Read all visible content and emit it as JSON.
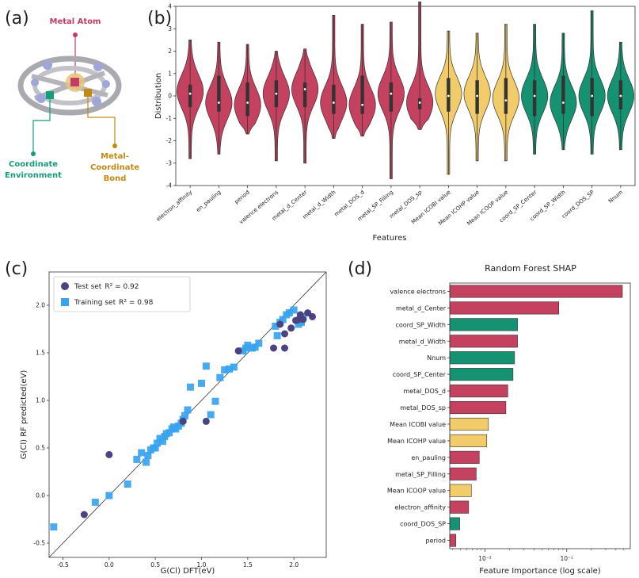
{
  "panel_labels": [
    "(a)",
    "(b)",
    "(c)",
    "(d)"
  ],
  "molecule": {
    "metal_atom_label": "Metal Atom",
    "coord_env_label_1": "Coordinate",
    "coord_env_label_2": "Environment",
    "bond_label_1": "Metal-",
    "bond_label_2": "Coordinate",
    "bond_label_3": "Bond",
    "colors": {
      "metal": "#c43c63",
      "coord": "#169c7b",
      "bond": "#c28a12"
    }
  },
  "colors": {
    "red": "#c4415f",
    "yellow": "#f2cc6b",
    "green": "#149271",
    "navy": "#4a4380",
    "lightblue": "#3aa3ee"
  },
  "chart_data": [
    {
      "type": "violin",
      "panel": "b",
      "ylabel": "Distribution",
      "xlabel": "Features",
      "ylim": [
        -4,
        4
      ],
      "yticks": [
        -4,
        -3,
        -2,
        -1,
        0,
        1,
        2,
        3,
        4
      ],
      "features": [
        {
          "name": "electron_affinity",
          "group": "red",
          "min": -2.8,
          "max": 2.5,
          "q1": -0.5,
          "median": 0.1,
          "q3": 0.5,
          "peak": 0.2
        },
        {
          "name": "en_pauling",
          "group": "red",
          "min": -2.6,
          "max": 2.4,
          "q1": -0.7,
          "median": -0.3,
          "q3": 0.9,
          "peak": -0.3
        },
        {
          "name": "period",
          "group": "red",
          "min": -1.7,
          "max": 2.3,
          "q1": -0.9,
          "median": -0.3,
          "q3": 0.6,
          "peak": -0.4
        },
        {
          "name": "valence electrons",
          "group": "red",
          "min": -2.9,
          "max": 2.0,
          "q1": -0.5,
          "median": 0.1,
          "q3": 0.7,
          "peak": 0.1
        },
        {
          "name": "metal_d_Center",
          "group": "red",
          "min": -3.0,
          "max": 2.1,
          "q1": -0.5,
          "median": 0.3,
          "q3": 0.6,
          "peak": 0.3
        },
        {
          "name": "metal_d_Width",
          "group": "red",
          "min": -1.9,
          "max": 3.6,
          "q1": -0.8,
          "median": -0.3,
          "q3": 0.5,
          "peak": -0.3
        },
        {
          "name": "metal_DOS_d",
          "group": "red",
          "min": -1.8,
          "max": 3.2,
          "q1": -0.8,
          "median": -0.4,
          "q3": 0.9,
          "peak": -0.4
        },
        {
          "name": "metal_SP_Filling",
          "group": "red",
          "min": -3.7,
          "max": 3.3,
          "q1": -0.7,
          "median": 0.1,
          "q3": 0.6,
          "peak": 0.1
        },
        {
          "name": "metal_DOS_sp",
          "group": "red",
          "min": -1.5,
          "max": 4.2,
          "q1": -0.6,
          "median": -0.3,
          "q3": -0.1,
          "peak": -0.3
        },
        {
          "name": "Mean ICOBI value",
          "group": "yellow",
          "min": -3.5,
          "max": 2.9,
          "q1": -0.7,
          "median": 0.0,
          "q3": 0.8,
          "peak": 0.1
        },
        {
          "name": "Mean ICOHP value",
          "group": "yellow",
          "min": -2.9,
          "max": 2.8,
          "q1": -0.8,
          "median": 0.0,
          "q3": 0.7,
          "peak": 0.1
        },
        {
          "name": "Mean ICOOP value",
          "group": "yellow",
          "min": -2.9,
          "max": 3.2,
          "q1": -0.8,
          "median": -0.2,
          "q3": 0.8,
          "peak": -0.1
        },
        {
          "name": "coord_SP_Center",
          "group": "green",
          "min": -2.6,
          "max": 3.2,
          "q1": -0.9,
          "median": 0.0,
          "q3": 0.7,
          "peak": 0.0
        },
        {
          "name": "coord_SP_Width",
          "group": "green",
          "min": -2.4,
          "max": 2.8,
          "q1": -0.8,
          "median": -0.3,
          "q3": 0.9,
          "peak": -0.3
        },
        {
          "name": "coord_DOS_SP",
          "group": "green",
          "min": -2.6,
          "max": 3.8,
          "q1": -0.9,
          "median": 0.0,
          "q3": 0.8,
          "peak": 0.0
        },
        {
          "name": "Nnum",
          "group": "green",
          "min": -2.4,
          "max": 2.4,
          "q1": -0.6,
          "median": 0.0,
          "q3": 0.7,
          "peak": 0.0
        }
      ]
    },
    {
      "type": "scatter",
      "panel": "c",
      "xlabel": "G(Cl) DFT(eV)",
      "ylabel": "G(Cl) RF predicted(eV)",
      "xlim": [
        -0.65,
        2.35
      ],
      "ylim": [
        -0.65,
        2.35
      ],
      "xticks": [
        -0.5,
        0.0,
        0.5,
        1.0,
        1.5,
        2.0
      ],
      "yticks": [
        -0.5,
        0.0,
        0.5,
        1.0,
        1.5,
        2.0
      ],
      "xtick_labels": [
        "-0.5",
        "0.0",
        "0.5",
        "1.0",
        "1.5",
        "2.0"
      ],
      "ytick_labels": [
        "-0.5",
        "0.0",
        "0.5",
        "1.0",
        "1.5",
        "2.0"
      ],
      "diagonal": true,
      "series": [
        {
          "name": "Test set",
          "legend_r2": "R² = 0.92",
          "marker": "circle",
          "color": "navy",
          "points": [
            [
              -0.27,
              -0.2
            ],
            [
              0.0,
              0.43
            ],
            [
              1.05,
              0.78
            ],
            [
              0.8,
              0.78
            ],
            [
              1.4,
              1.52
            ],
            [
              1.78,
              1.55
            ],
            [
              1.9,
              1.55
            ],
            [
              1.9,
              1.7
            ],
            [
              1.97,
              1.76
            ],
            [
              2.02,
              1.84
            ],
            [
              2.05,
              1.85
            ],
            [
              2.1,
              1.85
            ],
            [
              2.15,
              1.92
            ],
            [
              2.2,
              1.88
            ],
            [
              2.07,
              1.9
            ],
            [
              1.85,
              1.8
            ]
          ]
        },
        {
          "name": "Training set",
          "legend_r2": "R² = 0.98",
          "marker": "square",
          "color": "lightblue",
          "points": [
            [
              -0.6,
              -0.33
            ],
            [
              -0.15,
              -0.07
            ],
            [
              0.0,
              0.0
            ],
            [
              0.2,
              0.12
            ],
            [
              0.3,
              0.38
            ],
            [
              0.35,
              0.45
            ],
            [
              0.4,
              0.35
            ],
            [
              0.42,
              0.42
            ],
            [
              0.45,
              0.48
            ],
            [
              0.48,
              0.5
            ],
            [
              0.5,
              0.5
            ],
            [
              0.52,
              0.55
            ],
            [
              0.55,
              0.6
            ],
            [
              0.58,
              0.57
            ],
            [
              0.6,
              0.62
            ],
            [
              0.62,
              0.65
            ],
            [
              0.65,
              0.66
            ],
            [
              0.68,
              0.7
            ],
            [
              0.7,
              0.72
            ],
            [
              0.72,
              0.7
            ],
            [
              0.75,
              0.73
            ],
            [
              0.78,
              0.76
            ],
            [
              0.8,
              0.8
            ],
            [
              0.82,
              0.84
            ],
            [
              0.85,
              0.9
            ],
            [
              0.88,
              1.14
            ],
            [
              1.0,
              1.18
            ],
            [
              1.05,
              1.36
            ],
            [
              1.1,
              0.85
            ],
            [
              1.15,
              0.99
            ],
            [
              1.2,
              1.24
            ],
            [
              1.25,
              1.32
            ],
            [
              1.3,
              1.33
            ],
            [
              1.35,
              1.35
            ],
            [
              1.45,
              1.52
            ],
            [
              1.48,
              1.55
            ],
            [
              1.5,
              1.58
            ],
            [
              1.55,
              1.55
            ],
            [
              1.58,
              1.56
            ],
            [
              1.62,
              1.6
            ],
            [
              1.8,
              1.78
            ],
            [
              1.82,
              1.68
            ],
            [
              1.85,
              1.82
            ],
            [
              1.88,
              1.85
            ],
            [
              1.92,
              1.9
            ],
            [
              1.95,
              1.92
            ],
            [
              2.0,
              1.95
            ],
            [
              2.05,
              1.8
            ],
            [
              2.08,
              1.82
            ],
            [
              2.1,
              1.88
            ]
          ]
        }
      ]
    },
    {
      "type": "bar",
      "panel": "d",
      "orientation": "horizontal",
      "title": "Random Forest SHAP",
      "xlabel": "Feature Importance (log scale)",
      "xscale": "log",
      "xlim": [
        0.0037,
        0.6
      ],
      "xticks": [
        0.01,
        0.1
      ],
      "xtick_labels": [
        "10⁻²",
        "10⁻¹"
      ],
      "categories": [
        "valence electrons",
        "metal_d_Center",
        "coord_SP_Width",
        "metal_d_Width",
        "Nnum",
        "coord_SP_Center",
        "metal_DOS_d",
        "metal_DOS_sp",
        "Mean ICOBI value",
        "Mean ICOHP value",
        "en_pauling",
        "metal_SP_Filling",
        "Mean ICOOP value",
        "electron_affinity",
        "coord_DOS_SP",
        "period"
      ],
      "values": [
        0.48,
        0.08,
        0.025,
        0.025,
        0.023,
        0.022,
        0.019,
        0.018,
        0.011,
        0.0105,
        0.0085,
        0.0078,
        0.0068,
        0.0063,
        0.0049,
        0.0044
      ],
      "groups": [
        "red",
        "red",
        "green",
        "red",
        "green",
        "green",
        "red",
        "red",
        "yellow",
        "yellow",
        "red",
        "red",
        "yellow",
        "red",
        "green",
        "red"
      ]
    }
  ]
}
